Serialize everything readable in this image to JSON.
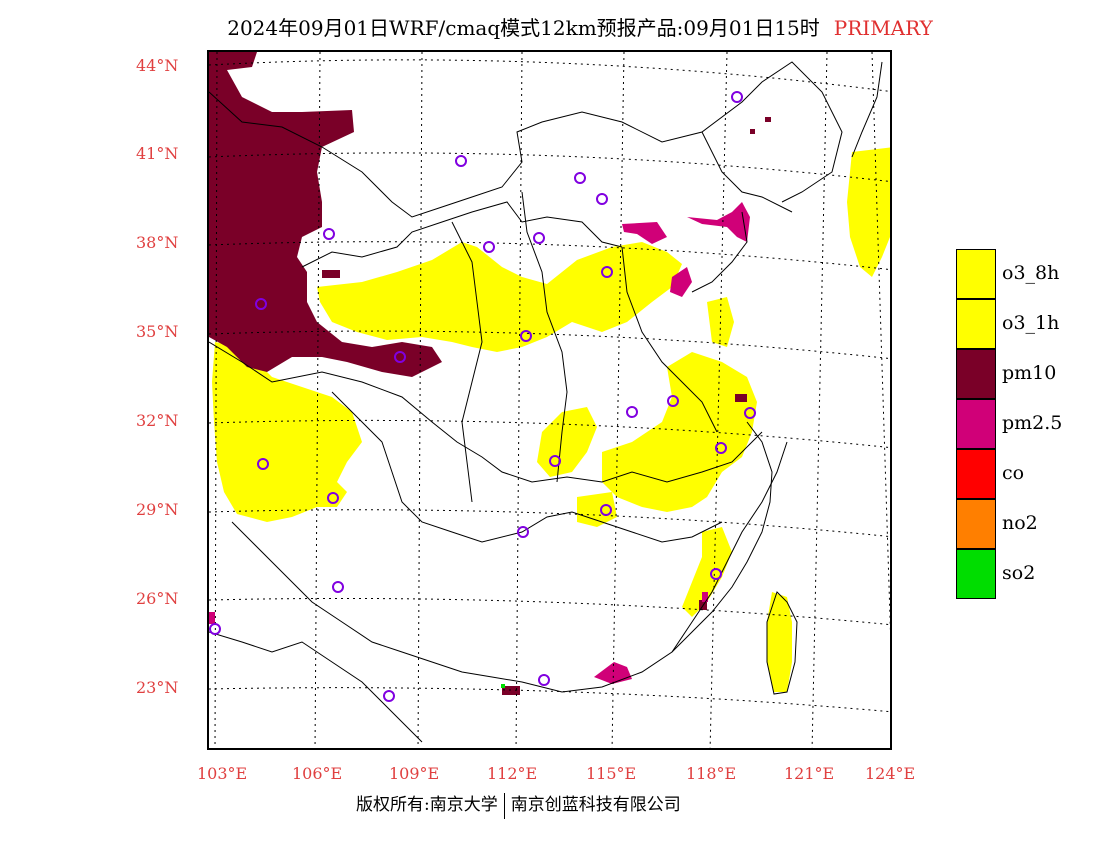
{
  "title": {
    "main": "2024年09月01日WRF/cmaq模式12km预报产品:09月01日15时",
    "mode": "PRIMARY"
  },
  "axes": {
    "lat_labels": [
      "44°N",
      "41°N",
      "38°N",
      "35°N",
      "32°N",
      "29°N",
      "26°N",
      "23°N"
    ],
    "lon_labels": [
      "103°E",
      "106°E",
      "109°E",
      "112°E",
      "115°E",
      "118°E",
      "121°E",
      "124°E"
    ]
  },
  "legend": [
    {
      "label": "o3_8h",
      "color": "#ffff00"
    },
    {
      "label": "o3_1h",
      "color": "#ffff00"
    },
    {
      "label": "pm10",
      "color": "#7a0028"
    },
    {
      "label": "pm2.5",
      "color": "#d00078"
    },
    {
      "label": "co",
      "color": "#ff0000"
    },
    {
      "label": "no2",
      "color": "#ff7f00"
    },
    {
      "label": "so2",
      "color": "#00dd00"
    }
  ],
  "footer": {
    "left": "版权所有:南京大学",
    "right": "南京创蓝科技有限公司"
  },
  "colors": {
    "o3": "#ffff00",
    "pm10": "#7a0028",
    "pm25": "#d00078",
    "station": "#8000e0",
    "axis_label": "#e04040"
  }
}
